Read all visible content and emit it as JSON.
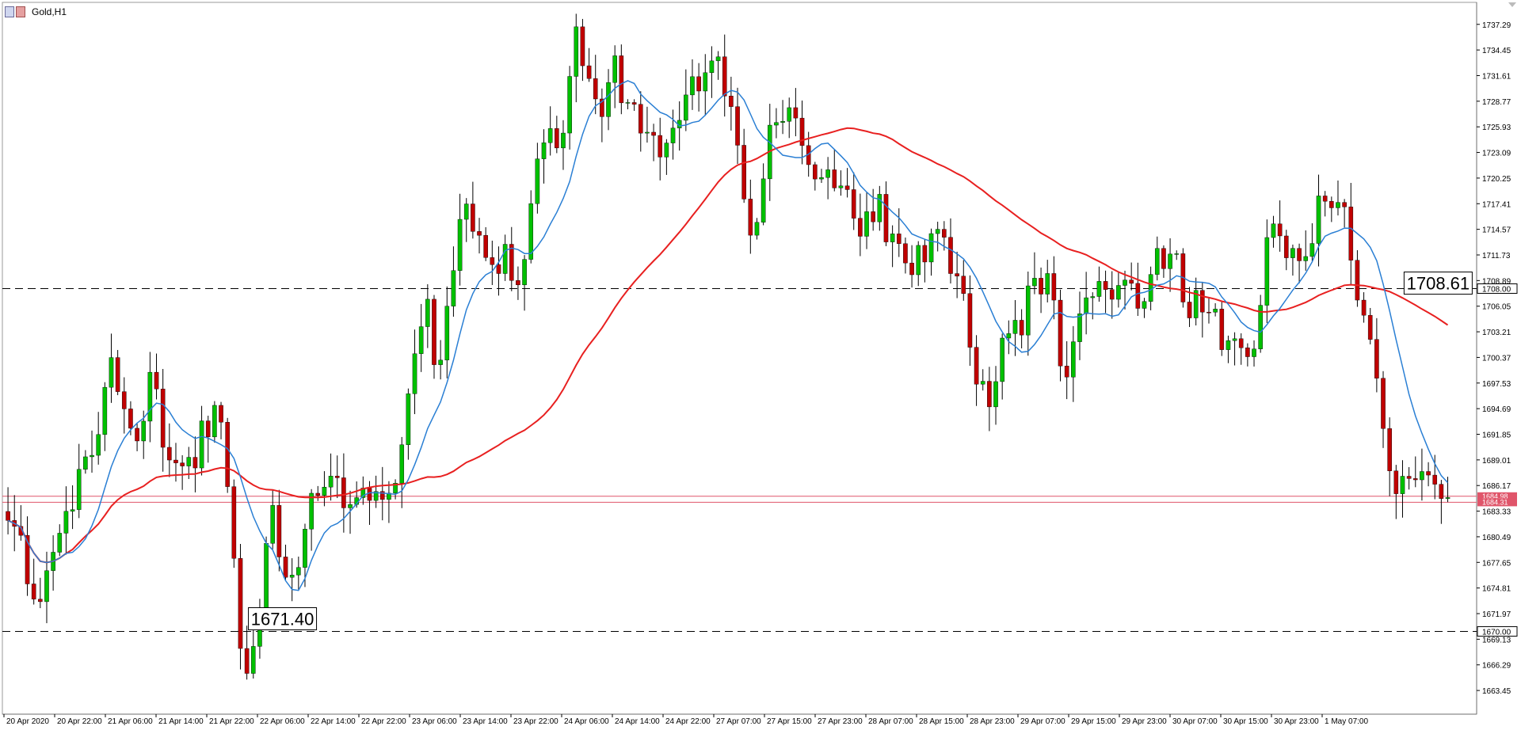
{
  "window": {
    "title": "Gold,H1",
    "icon": "chart-window-icon"
  },
  "chart_data": {
    "type": "candlestick",
    "symbol": "Gold",
    "timeframe": "H1",
    "ylim": [
      1661.0,
      1739.2
    ],
    "grid": false,
    "colors": {
      "bull": "#00c000",
      "bear": "#c00000",
      "wick": "#000000",
      "sma_fast": "#2a7fd4",
      "sma_slow": "#e82020",
      "level": "#000000",
      "bid_line": "#e0556a"
    },
    "y_tick_labels": [
      "1737.29",
      "1734.45",
      "1731.61",
      "1728.77",
      "1725.93",
      "1723.09",
      "1720.25",
      "1717.41",
      "1714.57",
      "1711.73",
      "1708.89",
      "1706.05",
      "1703.21",
      "1700.37",
      "1697.53",
      "1694.69",
      "1691.85",
      "1689.01",
      "1686.17",
      "1683.33",
      "1680.49",
      "1677.65",
      "1674.81",
      "1671.97",
      "1669.13",
      "1666.29",
      "1663.45"
    ],
    "x_tick_labels": [
      "20 Apr 2020",
      "20 Apr 22:00",
      "21 Apr 06:00",
      "21 Apr 14:00",
      "21 Apr 22:00",
      "22 Apr 06:00",
      "22 Apr 14:00",
      "22 Apr 22:00",
      "23 Apr 06:00",
      "23 Apr 14:00",
      "23 Apr 22:00",
      "24 Apr 06:00",
      "24 Apr 14:00",
      "24 Apr 22:00",
      "27 Apr 07:00",
      "27 Apr 15:00",
      "27 Apr 23:00",
      "28 Apr 07:00",
      "28 Apr 15:00",
      "28 Apr 23:00",
      "29 Apr 07:00",
      "29 Apr 15:00",
      "29 Apr 23:00",
      "30 Apr 07:00",
      "30 Apr 15:00",
      "30 Apr 23:00",
      "1 May 07:00"
    ],
    "level_lines": [
      {
        "value": 1708.0,
        "axis_label": "1708.00"
      },
      {
        "value": 1670.0,
        "axis_label": "1670.00"
      }
    ],
    "bid_lines": [
      {
        "value": 1684.98,
        "axis_label": "1684.98"
      },
      {
        "value": 1684.31,
        "axis_label": "1684.31"
      }
    ],
    "callouts": [
      {
        "text": "1708.61",
        "value": 1708.61,
        "bar": 216
      },
      {
        "text": "1671.40",
        "value": 1671.4,
        "bar": 37
      }
    ],
    "key_prices": [
      1683.0,
      1682.0,
      1678.0,
      1674.5,
      1673.5,
      1676.0,
      1678.0,
      1680.5,
      1684.0,
      1687.5,
      1688.5,
      1690.0,
      1693.0,
      1700.0,
      1698.5,
      1695.0,
      1692.0,
      1688.5,
      1698.0,
      1696.0,
      1690.0,
      1688.0,
      1687.0,
      1688.0,
      1688.0,
      1695.0,
      1691.0,
      1697.0,
      1687.0,
      1678.0,
      1668.0,
      1663.0,
      1671.0,
      1679.0,
      1683.0,
      1677.0,
      1673.5,
      1676.5,
      1682.0,
      1685.0,
      1686.5,
      1687.5,
      1686.5,
      1684.0,
      1683.0,
      1684.0,
      1685.0,
      1684.5,
      1685.0,
      1685.5,
      1686.0,
      1694.0,
      1701.0,
      1704.0,
      1707.0,
      1698.5,
      1703.0,
      1710.0,
      1715.0,
      1717.5,
      1714.5,
      1713.5,
      1710.5,
      1710.0,
      1712.5,
      1708.5,
      1711.0,
      1715.5,
      1721.0,
      1724.0,
      1727.0,
      1722.5,
      1730.0,
      1736.5,
      1732.0,
      1730.0,
      1727.0,
      1732.0,
      1733.0,
      1729.0,
      1729.0,
      1726.0,
      1724.0,
      1723.5,
      1723.5,
      1724.5,
      1724.0,
      1730.0,
      1730.0,
      1731.5,
      1733.0,
      1736.5,
      1729.5,
      1727.0,
      1723.0,
      1713.0,
      1714.5,
      1721.0,
      1726.0,
      1727.0,
      1728.0,
      1726.0,
      1723.0,
      1722.0,
      1721.0,
      1721.0,
      1720.5,
      1718.0,
      1719.0,
      1713.5,
      1717.0,
      1716.0,
      1717.5,
      1712.0,
      1713.0,
      1710.0,
      1709.5,
      1711.5,
      1712.0,
      1716.0,
      1714.5,
      1710.0,
      1708.0,
      1706.5,
      1699.5,
      1697.0,
      1696.0,
      1698.0,
      1703.0,
      1704.5,
      1703.0,
      1707.0,
      1708.5,
      1709.0,
      1708.0,
      1701.5,
      1699.0,
      1701.0,
      1705.0,
      1708.0,
      1707.5,
      1708.5,
      1706.0,
      1709.0,
      1708.0,
      1706.0,
      1706.0,
      1711.0,
      1711.5,
      1710.0,
      1711.5,
      1706.0,
      1704.5,
      1708.5,
      1705.0,
      1707.0,
      1701.5,
      1702.5,
      1703.0,
      1700.5,
      1701.0,
      1706.0,
      1715.5,
      1713.5,
      1711.0,
      1712.5,
      1710.5,
      1710.5,
      1716.5,
      1719.0,
      1718.5,
      1717.0,
      1716.5,
      1708.0,
      1705.0,
      1702.0,
      1696.0,
      1689.0,
      1684.0,
      1686.5,
      1686.5,
      1687.0,
      1689.0,
      1688.0,
      1686.0,
      1685.0
    ]
  }
}
